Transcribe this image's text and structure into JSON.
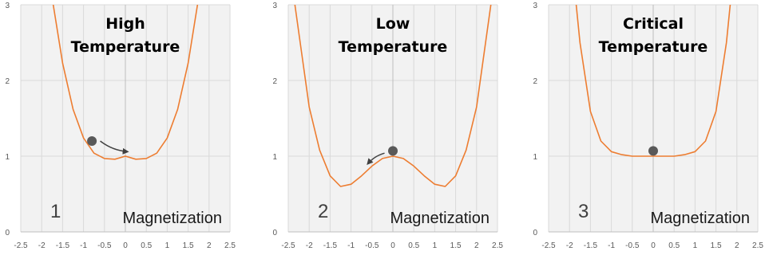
{
  "colors": {
    "curve": "#ED7D31",
    "grid": "#D9D9D9",
    "plot_bg": "#F2F2F2",
    "ball": "#595959",
    "arrow": "#404040"
  },
  "chart_data": [
    {
      "type": "line",
      "panel_number": "1",
      "title": [
        "High",
        "Temperature"
      ],
      "xlabel": "Magnetization",
      "ylabel": "",
      "xlim": [
        -2.5,
        2.5
      ],
      "ylim": [
        0,
        3
      ],
      "x_ticks": [
        "-2.5",
        "-2",
        "-1.5",
        "-1",
        "-0.5",
        "0",
        "0.5",
        "1",
        "1.5",
        "2",
        "2.5"
      ],
      "y_ticks": [
        "0",
        "1",
        "2",
        "3"
      ],
      "grid": true,
      "series": [
        {
          "x": [
            -2.0,
            -1.75,
            -1.5,
            -1.25,
            -1.0,
            -0.75,
            -0.5,
            -0.25,
            0,
            0.25,
            0.5,
            0.75,
            1.0,
            1.25,
            1.5,
            1.75,
            2.0
          ],
          "y": [
            4.2,
            3.09,
            2.23,
            1.62,
            1.24,
            1.04,
            0.97,
            0.96,
            1.0,
            0.96,
            0.97,
            1.04,
            1.24,
            1.62,
            2.23,
            3.09,
            4.2
          ]
        }
      ],
      "ball": {
        "x": -0.8,
        "y": 1.2
      },
      "arrow": {
        "from": [
          -0.6,
          1.2
        ],
        "to": [
          0.05,
          1.06
        ]
      }
    },
    {
      "type": "line",
      "panel_number": "2",
      "title": [
        "Low",
        "Temperature"
      ],
      "xlabel": "Magnetization",
      "ylabel": "",
      "xlim": [
        -2.5,
        2.5
      ],
      "ylim": [
        0,
        3
      ],
      "x_ticks": [
        "-2.5",
        "-2",
        "-1.5",
        "-1",
        "-0.5",
        "0",
        "0.5",
        "1",
        "1.5",
        "2",
        "2.5"
      ],
      "y_ticks": [
        "0",
        "1",
        "2",
        "3"
      ],
      "grid": true,
      "series": [
        {
          "x": [
            -2.35,
            -2.0,
            -1.75,
            -1.5,
            -1.25,
            -1.0,
            -0.75,
            -0.5,
            -0.25,
            0,
            0.25,
            0.5,
            0.75,
            1.0,
            1.25,
            1.5,
            1.75,
            2.0,
            2.35
          ],
          "y": [
            3.03,
            1.65,
            1.08,
            0.74,
            0.6,
            0.63,
            0.74,
            0.87,
            0.97,
            1.0,
            0.97,
            0.87,
            0.74,
            0.63,
            0.6,
            0.74,
            1.08,
            1.65,
            3.03
          ]
        }
      ],
      "ball": {
        "x": 0.0,
        "y": 1.07
      },
      "arrow": {
        "from": [
          -0.2,
          1.04
        ],
        "to": [
          -0.6,
          0.9
        ]
      }
    },
    {
      "type": "line",
      "panel_number": "3",
      "title": [
        "Critical",
        "Temperature"
      ],
      "xlabel": "Magnetization",
      "ylabel": "",
      "xlim": [
        -2.5,
        2.5
      ],
      "ylim": [
        0,
        3
      ],
      "x_ticks": [
        "-2.5",
        "-2",
        "-1.5",
        "-1",
        "-0.5",
        "0",
        "0.5",
        "1",
        "1.5",
        "2",
        "2.5"
      ],
      "y_ticks": [
        "0",
        "1",
        "2",
        "3"
      ],
      "grid": true,
      "series": [
        {
          "x": [
            -2.0,
            -1.85,
            -1.75,
            -1.5,
            -1.25,
            -1.0,
            -0.75,
            -0.5,
            0,
            0.5,
            0.75,
            1.0,
            1.25,
            1.5,
            1.75,
            1.85,
            2.0
          ],
          "y": [
            4.2,
            3.05,
            2.5,
            1.59,
            1.2,
            1.06,
            1.02,
            1.0,
            1.0,
            1.0,
            1.02,
            1.06,
            1.2,
            1.59,
            2.5,
            3.05,
            4.2
          ]
        }
      ],
      "ball": {
        "x": 0.0,
        "y": 1.07
      }
    }
  ]
}
